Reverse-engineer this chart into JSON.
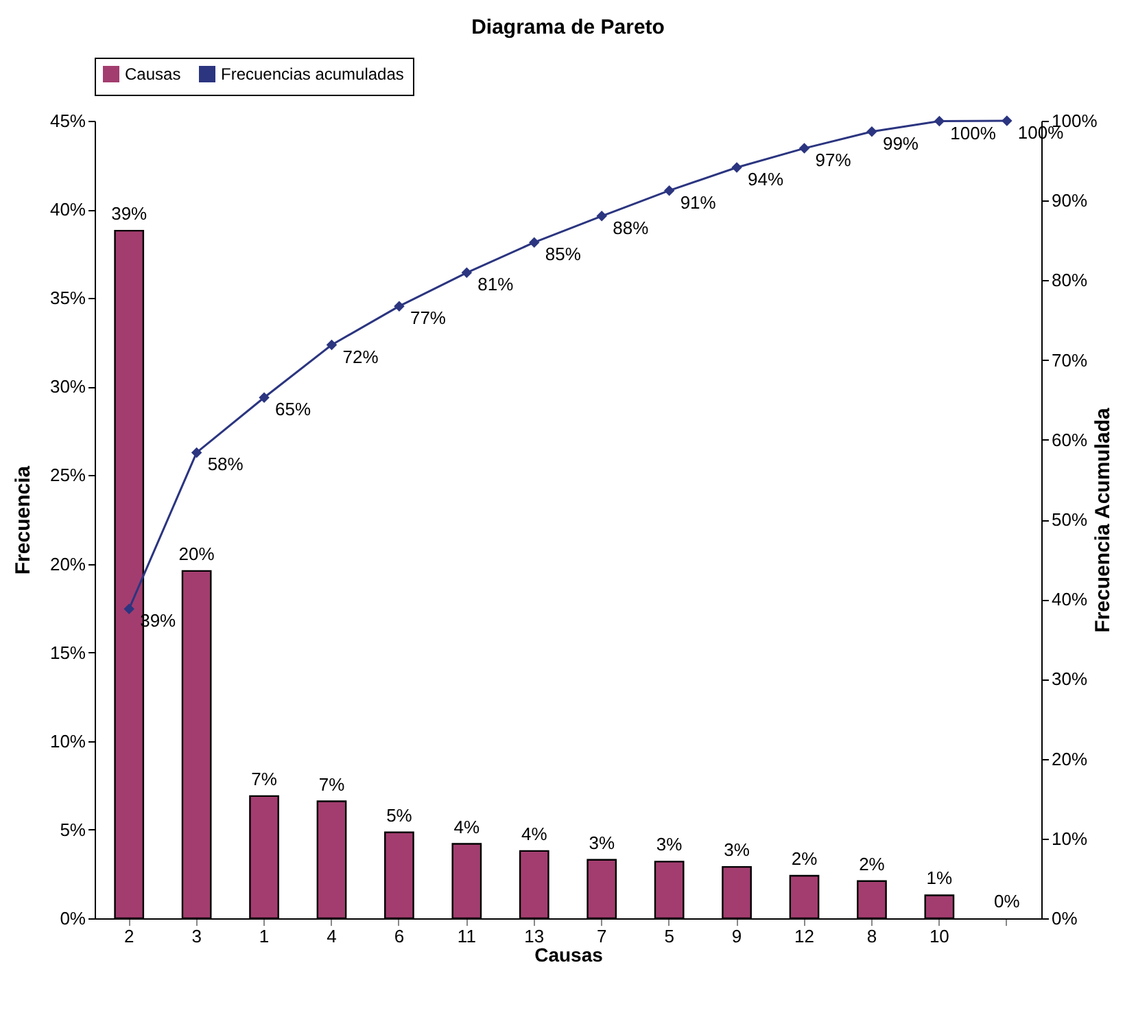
{
  "chart_data": {
    "type": "bar",
    "title": "Diagrama de Pareto",
    "xlabel": "Causas",
    "ylabel": "Frecuencia",
    "y2label": "Frecuencia Acumulada",
    "categories": [
      "2",
      "3",
      "1",
      "4",
      "6",
      "11",
      "13",
      "7",
      "5",
      "9",
      "12",
      "8",
      "10",
      null
    ],
    "series": [
      {
        "name": "Causas",
        "color": "#a33d6f",
        "values": [
          38.8,
          19.6,
          6.9,
          6.6,
          4.85,
          4.2,
          3.8,
          3.3,
          3.2,
          2.9,
          2.4,
          2.1,
          1.3,
          0
        ],
        "value_labels": [
          "39%",
          "20%",
          "7%",
          "7%",
          "5%",
          "4%",
          "4%",
          "3%",
          "3%",
          "3%",
          "2%",
          "2%",
          "1%",
          "0%"
        ]
      },
      {
        "name": "Frecuencias acumuladas",
        "type": "line",
        "axis": "y2",
        "color": "#2b3580",
        "marker": "diamond",
        "values": [
          38.8,
          58.4,
          65.3,
          71.9,
          76.75,
          80.95,
          84.75,
          88.05,
          91.25,
          94.15,
          96.55,
          98.65,
          99.95,
          100
        ],
        "value_labels": [
          "39%",
          "58%",
          "65%",
          "72%",
          "77%",
          "81%",
          "85%",
          "88%",
          "91%",
          "94%",
          "97%",
          "99%",
          "100%",
          "100%"
        ]
      }
    ],
    "ylim": [
      0,
      45
    ],
    "yticks": [
      {
        "value": 0,
        "label": "0%"
      },
      {
        "value": 5,
        "label": "5%"
      },
      {
        "value": 10,
        "label": "10%"
      },
      {
        "value": 15,
        "label": "15%"
      },
      {
        "value": 20,
        "label": "20%"
      },
      {
        "value": 25,
        "label": "25%"
      },
      {
        "value": 30,
        "label": "30%"
      },
      {
        "value": 35,
        "label": "35%"
      },
      {
        "value": 40,
        "label": "40%"
      },
      {
        "value": 45,
        "label": "45%"
      }
    ],
    "y2lim": [
      0,
      100
    ],
    "y2ticks": [
      {
        "value": 0,
        "label": "0%"
      },
      {
        "value": 10,
        "label": "10%"
      },
      {
        "value": 20,
        "label": "20%"
      },
      {
        "value": 30,
        "label": "30%"
      },
      {
        "value": 40,
        "label": "40%"
      },
      {
        "value": 50,
        "label": "50%"
      },
      {
        "value": 60,
        "label": "60%"
      },
      {
        "value": 70,
        "label": "70%"
      },
      {
        "value": 80,
        "label": "80%"
      },
      {
        "value": 90,
        "label": "90%"
      },
      {
        "value": 100,
        "label": "100%"
      }
    ],
    "grid": false,
    "legend": "top"
  }
}
